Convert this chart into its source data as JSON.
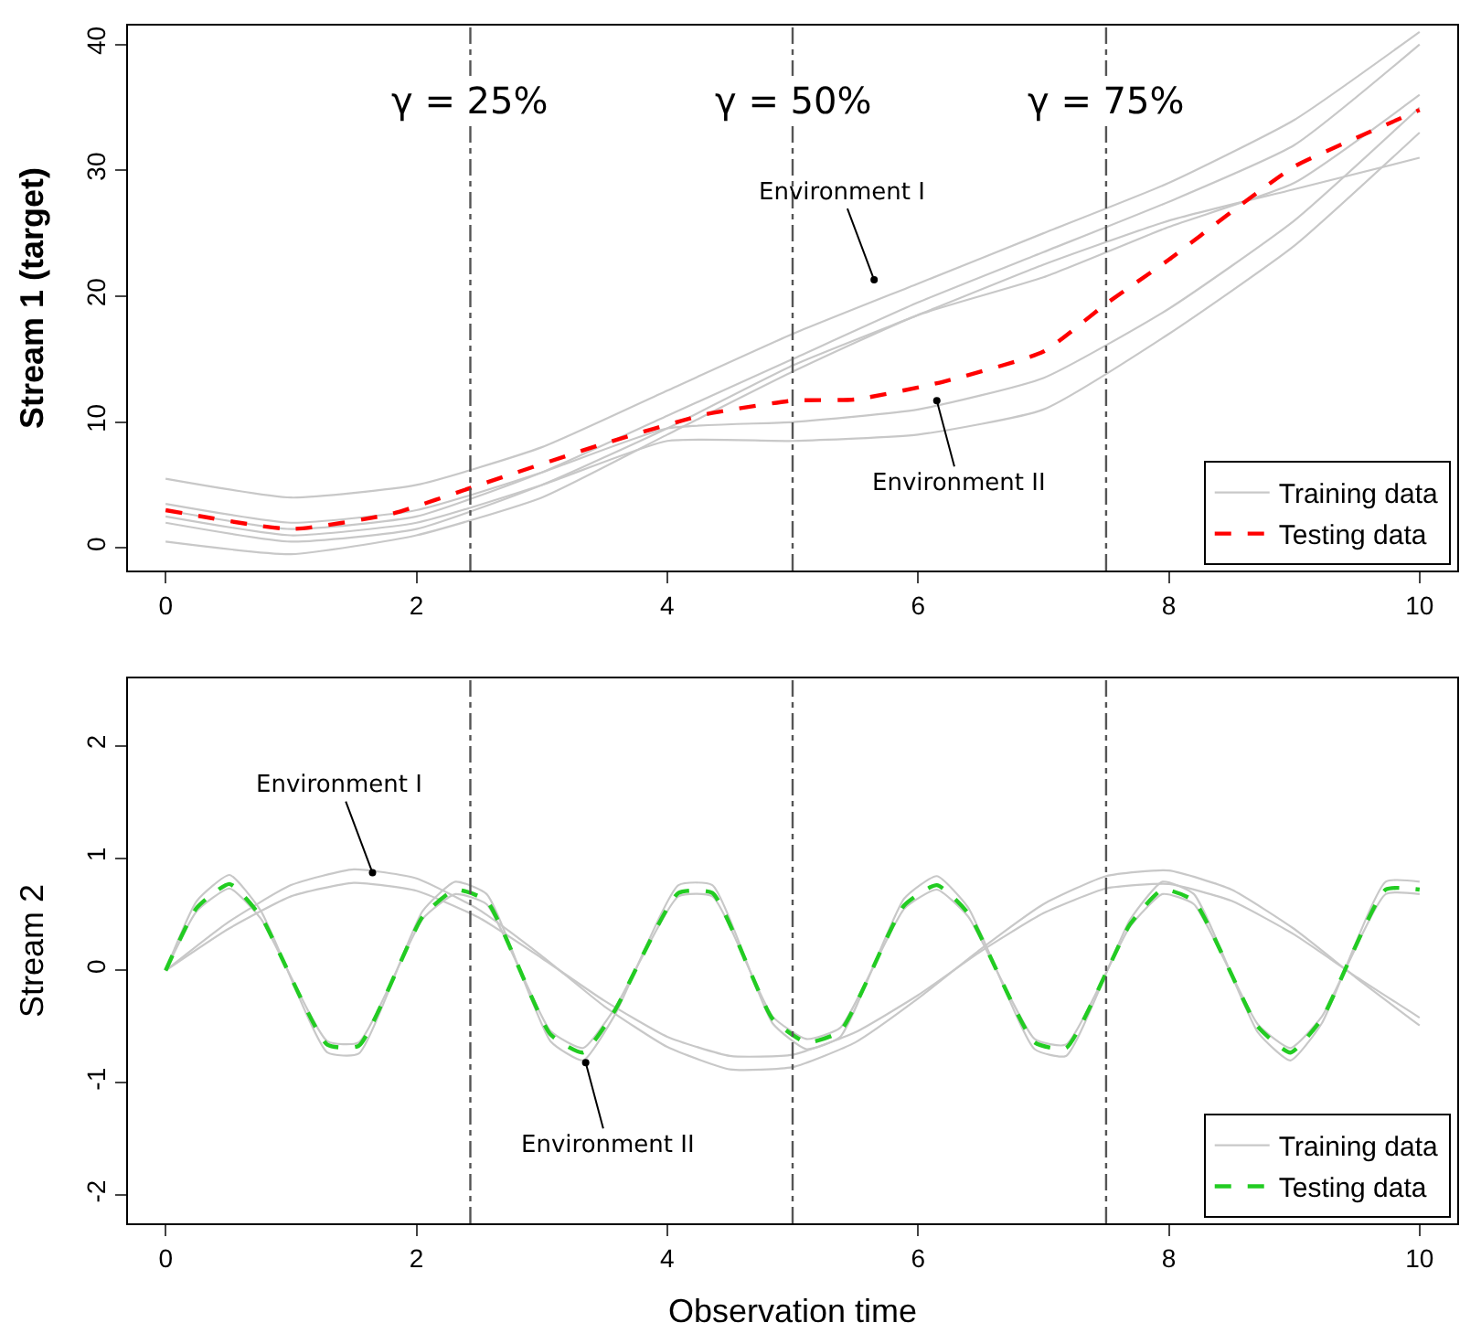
{
  "chart_data": [
    {
      "type": "line",
      "ylabel": "Stream 1 (target)",
      "xlim": [
        -0.3,
        10.3
      ],
      "ylim": [
        -1.8,
        41.5
      ],
      "xticks": [
        0,
        2,
        4,
        6,
        8,
        10
      ],
      "yticks": [
        0,
        10,
        20,
        30,
        40
      ],
      "legend": "bottom right",
      "line_style": "solid",
      "series": [
        {
          "name": "Training data",
          "color": "#c8c8c8",
          "x": [
            0,
            1,
            2,
            3,
            4,
            5,
            6,
            7,
            8,
            9,
            10
          ],
          "values": [
            5.5,
            4,
            5,
            8,
            12.5,
            17,
            21,
            25,
            29,
            34,
            41
          ]
        },
        {
          "color": "#c8c8c8",
          "x": [
            0,
            1,
            2,
            3,
            4,
            5,
            6,
            7,
            8,
            9,
            10
          ],
          "values": [
            3,
            1.5,
            2.5,
            6,
            10.5,
            15,
            19.5,
            23.5,
            27.5,
            32,
            40
          ]
        },
        {
          "color": "#c8c8c8",
          "x": [
            0,
            1,
            2,
            3,
            4,
            5,
            6,
            7,
            8,
            9,
            10
          ],
          "values": [
            0.5,
            -0.5,
            1,
            4,
            9,
            14,
            18.5,
            21.5,
            25.5,
            29,
            36
          ]
        },
        {
          "color": "#c8c8c8",
          "x": [
            0,
            1,
            2,
            3,
            4,
            5,
            6,
            7,
            8,
            9,
            10
          ],
          "values": [
            2,
            0.5,
            1.5,
            5,
            9.5,
            14.5,
            18.5,
            22.5,
            26,
            28.5,
            31
          ]
        },
        {
          "color": "#c8c8c8",
          "x": [
            0,
            1,
            2,
            3,
            4,
            5,
            6,
            7,
            8,
            9,
            10
          ],
          "values": [
            3.5,
            2,
            3,
            6,
            9.5,
            10,
            11,
            13.5,
            19,
            26,
            35
          ]
        },
        {
          "color": "#c8c8c8",
          "x": [
            0,
            1,
            2,
            3,
            4,
            5,
            6,
            7,
            8,
            9,
            10
          ],
          "values": [
            2.5,
            1,
            2,
            5,
            8.5,
            8.5,
            9,
            11,
            17,
            24,
            33
          ]
        },
        {
          "name": "Testing data",
          "color": "#ff0000",
          "line_style": "dashed",
          "x": [
            0,
            1,
            1.8,
            2.5,
            3.5,
            4.3,
            5,
            5.5,
            6.2,
            7,
            7.5,
            8,
            8.5,
            9,
            9.5,
            10
          ],
          "values": [
            3,
            1.5,
            2.7,
            5,
            8.3,
            10.6,
            11.7,
            11.8,
            13.2,
            15.6,
            19.4,
            22.9,
            26.7,
            30.3,
            32.6,
            34.8
          ]
        }
      ],
      "ref_lines": [
        {
          "axis": "x",
          "value": 2.43,
          "color": "#555555",
          "line_style": "dashdot"
        },
        {
          "axis": "x",
          "value": 5,
          "color": "#555555",
          "line_style": "dashdot"
        },
        {
          "axis": "x",
          "value": 7.5,
          "color": "#555555",
          "line_style": "dashdot"
        }
      ],
      "annotations": [
        {
          "text": "Environment I",
          "x": 5.65,
          "y": 21.3
        },
        {
          "text": "Environment II",
          "x": 6.15,
          "y": 11.7
        },
        {
          "text": "γ = 25%",
          "x": 2.43,
          "y": 35.5
        },
        {
          "text": "γ = 50%",
          "x": 5,
          "y": 35.5
        },
        {
          "text": "γ = 75%",
          "x": 7.5,
          "y": 35.5
        }
      ]
    },
    {
      "type": "line",
      "xlabel": "Observation time",
      "ylabel": "Stream 2",
      "xlim": [
        -0.3,
        10.3
      ],
      "ylim": [
        -2.25,
        2.6
      ],
      "xticks": [
        0,
        2,
        4,
        6,
        8,
        10
      ],
      "yticks": [
        -2,
        -1,
        0,
        1,
        2
      ],
      "legend": "bottom right",
      "line_style": "solid",
      "series": [
        {
          "name": "Training data",
          "color": "#c8c8c8",
          "x": [
            0,
            0.5,
            1,
            1.5,
            2,
            2.5,
            3,
            3.5,
            4,
            4.5,
            5,
            5.5,
            6,
            6.5,
            7,
            7.5,
            8,
            8.5,
            9,
            9.5,
            10
          ],
          "values": [
            0,
            0.43,
            0.76,
            0.9,
            0.82,
            0.54,
            0.13,
            -0.32,
            -0.68,
            -0.88,
            -0.86,
            -0.64,
            -0.25,
            0.19,
            0.59,
            0.84,
            0.89,
            0.72,
            0.37,
            -0.07,
            -0.49
          ]
        },
        {
          "color": "#c8c8c8",
          "x": [
            0,
            0.5,
            1,
            1.5,
            2,
            2.5,
            3,
            3.5,
            4,
            4.5,
            5,
            5.5,
            6,
            6.5,
            7,
            7.5,
            8,
            8.5,
            9,
            9.5,
            10
          ],
          "values": [
            0,
            0.37,
            0.66,
            0.78,
            0.71,
            0.47,
            0.11,
            -0.27,
            -0.59,
            -0.76,
            -0.75,
            -0.55,
            -0.22,
            0.17,
            0.51,
            0.73,
            0.77,
            0.62,
            0.32,
            -0.06,
            -0.42
          ]
        },
        {
          "color": "#c8c8c8",
          "x": [
            0,
            0.25,
            0.51,
            0.76,
            1.29,
            1.54,
            2.05,
            2.31,
            2.56,
            3.07,
            3.33,
            3.58,
            4.09,
            4.36,
            4.84,
            5.11,
            5.38,
            5.89,
            6.15,
            6.4,
            6.93,
            7.18,
            7.69,
            7.95,
            8.2,
            8.71,
            8.97,
            9.22,
            9.73,
            10
          ],
          "values": [
            0,
            0.62,
            0.85,
            0.53,
            -0.73,
            -0.74,
            0.53,
            0.79,
            0.68,
            -0.63,
            -0.8,
            -0.4,
            0.76,
            0.76,
            -0.47,
            -0.7,
            -0.59,
            0.64,
            0.84,
            0.56,
            -0.7,
            -0.76,
            0.45,
            0.79,
            0.68,
            -0.55,
            -0.8,
            -0.47,
            0.79,
            0.79
          ]
        },
        {
          "color": "#c8c8c8",
          "x": [
            0,
            0.25,
            0.51,
            0.76,
            1.29,
            1.54,
            2.05,
            2.31,
            2.56,
            3.07,
            3.33,
            3.58,
            4.09,
            4.36,
            4.84,
            5.11,
            5.38,
            5.89,
            6.15,
            6.4,
            6.93,
            7.18,
            7.69,
            7.95,
            8.2,
            8.71,
            8.97,
            9.22,
            9.73,
            10
          ],
          "values": [
            0,
            0.53,
            0.73,
            0.46,
            -0.63,
            -0.64,
            0.46,
            0.68,
            0.59,
            -0.54,
            -0.69,
            -0.34,
            0.66,
            0.66,
            -0.41,
            -0.61,
            -0.51,
            0.55,
            0.72,
            0.48,
            -0.61,
            -0.66,
            0.39,
            0.68,
            0.59,
            -0.48,
            -0.69,
            -0.41,
            0.68,
            0.68
          ]
        },
        {
          "name": "Testing data",
          "color": "#22cc22",
          "line_style": "dashed",
          "x": [
            0,
            0.25,
            0.51,
            0.76,
            1.29,
            1.54,
            2.05,
            2.31,
            2.56,
            3.07,
            3.33,
            3.58,
            4.09,
            4.36,
            4.84,
            5.11,
            5.38,
            5.89,
            6.15,
            6.4,
            6.93,
            7.18,
            7.69,
            7.95,
            8.2,
            8.71,
            8.97,
            9.22,
            9.73,
            10
          ],
          "values": [
            0,
            0.56,
            0.77,
            0.48,
            -0.66,
            -0.67,
            0.48,
            0.72,
            0.62,
            -0.57,
            -0.73,
            -0.36,
            0.69,
            0.69,
            -0.43,
            -0.64,
            -0.54,
            0.58,
            0.76,
            0.51,
            -0.64,
            -0.69,
            0.41,
            0.72,
            0.62,
            -0.5,
            -0.73,
            -0.43,
            0.72,
            0.72
          ]
        }
      ],
      "ref_lines": [
        {
          "axis": "x",
          "value": 2.43,
          "color": "#555555",
          "line_style": "dashdot"
        },
        {
          "axis": "x",
          "value": 5,
          "color": "#555555",
          "line_style": "dashdot"
        },
        {
          "axis": "x",
          "value": 7.5,
          "color": "#555555",
          "line_style": "dashdot"
        }
      ],
      "annotations": [
        {
          "text": "Environment I",
          "x": 1.65,
          "y": 0.87
        },
        {
          "text": "Environment II",
          "x": 3.35,
          "y": -0.82
        }
      ]
    }
  ]
}
